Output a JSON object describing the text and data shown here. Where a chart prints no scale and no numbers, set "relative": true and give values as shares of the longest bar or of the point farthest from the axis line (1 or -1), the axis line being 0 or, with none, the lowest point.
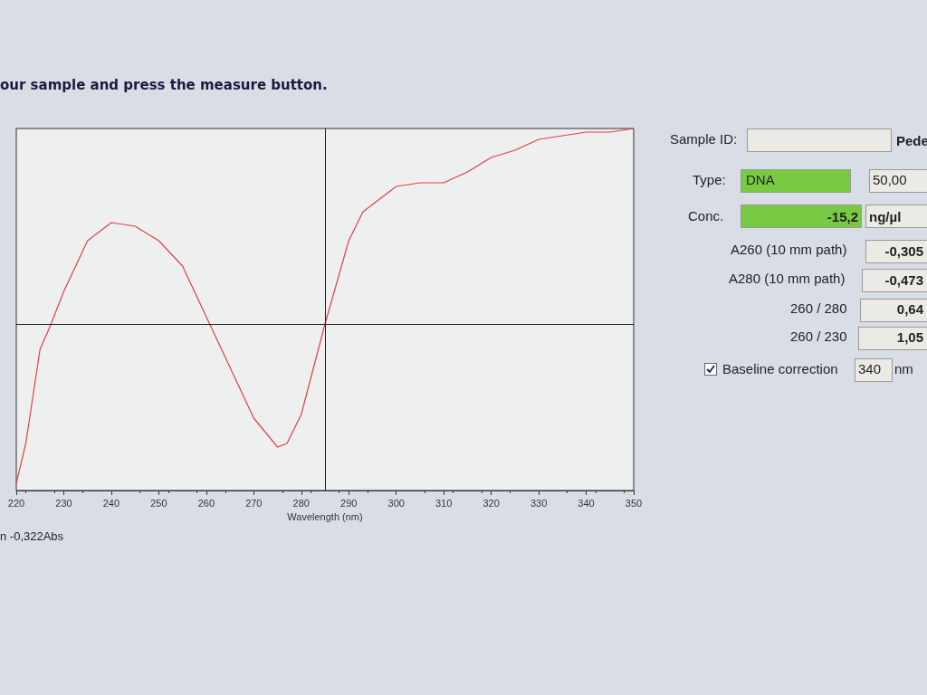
{
  "chart_data": [
    {
      "type": "line",
      "relative": true,
      "xlabel": "Wavelength (nm)",
      "xlim": [
        220,
        350
      ],
      "xticks": [
        220,
        230,
        240,
        250,
        260,
        270,
        280,
        290,
        300,
        310,
        320,
        330,
        340,
        350
      ],
      "grid": false,
      "marker": "none",
      "line_style": "solid",
      "x": [
        220,
        222,
        225,
        227,
        230,
        235,
        240,
        245,
        250,
        255,
        260,
        265,
        270,
        275,
        277,
        280,
        285,
        290,
        293,
        297,
        300,
        305,
        310,
        315,
        320,
        325,
        330,
        335,
        340,
        345,
        350
      ],
      "series": [
        {
          "color": "#e0404a",
          "values": [
            0.02,
            0.13,
            0.39,
            0.45,
            0.55,
            0.69,
            0.74,
            0.73,
            0.69,
            0.62,
            0.48,
            0.34,
            0.2,
            0.12,
            0.13,
            0.21,
            0.46,
            0.69,
            0.77,
            0.81,
            0.84,
            0.85,
            0.85,
            0.88,
            0.92,
            0.94,
            0.97,
            0.98,
            0.99,
            0.99,
            1.0
          ]
        }
      ],
      "ref_lines": [
        {
          "axis": "x",
          "value": 285,
          "color": "#202020"
        },
        {
          "axis": "y",
          "value": 0.46,
          "color": "#202020"
        }
      ],
      "annotations": [
        "our sample and press the measure button.",
        "n -0,322Abs"
      ]
    },
    {
      "type": "other",
      "annotations": [
        "Sample ID:",
        "Pede",
        "Type:",
        "DNA",
        "50,00",
        "Conc.",
        "-15,2",
        "ng/µl",
        "A260 (10 mm path)",
        "-0,305",
        "A280 (10 mm path)",
        "-0,473",
        "260 / 280",
        "0,64",
        "260 / 230",
        "1,05",
        "Baseline correction",
        "340",
        "nm"
      ]
    }
  ]
}
